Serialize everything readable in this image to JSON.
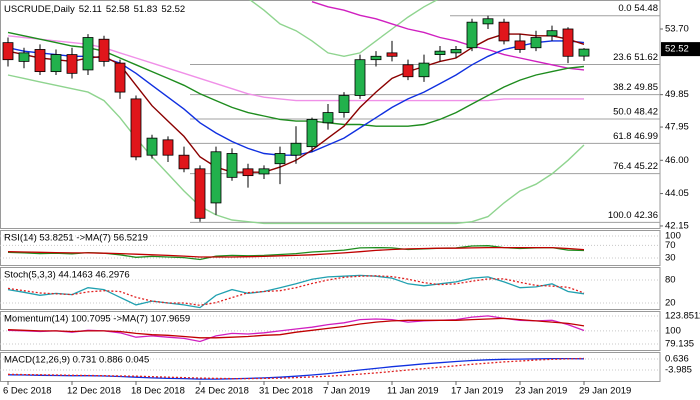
{
  "chart_data": {
    "type": "candlestick",
    "title": "USCRUDE,Daily",
    "categories": [
      "6 Dec 2018",
      null,
      null,
      null,
      "12 Dec 2018",
      null,
      null,
      null,
      "18 Dec 2018",
      null,
      null,
      null,
      "24 Dec 2018",
      null,
      null,
      null,
      "31 Dec 2018",
      null,
      null,
      null,
      "7 Jan 2019",
      null,
      null,
      null,
      "11 Jan 2019",
      null,
      null,
      null,
      "17 Jan 2019",
      null,
      null,
      null,
      "23 Jan 2019",
      null,
      null,
      null,
      "29 Jan 2019"
    ],
    "open": [
      52.9,
      51.8,
      52.5,
      51.2,
      52.2,
      51.3,
      53.1,
      51.7,
      49.6,
      46.3,
      47.2,
      46.3,
      45.5,
      43.5,
      45.0,
      45.5,
      45.2,
      45.8,
      46.3,
      46.8,
      48.2,
      48.8,
      49.8,
      51.9,
      52.3,
      51.6,
      50.9,
      52.2,
      52.3,
      52.6,
      54.0,
      54.1,
      53.0,
      52.6,
      53.3,
      53.7,
      52.11
    ],
    "high": [
      53.2,
      52.6,
      52.8,
      52.5,
      52.6,
      53.4,
      53.3,
      51.9,
      49.8,
      47.5,
      47.4,
      46.8,
      45.7,
      46.8,
      46.7,
      45.8,
      45.7,
      46.8,
      48.0,
      48.5,
      49.3,
      50.0,
      52.2,
      52.4,
      53.0,
      51.9,
      52.2,
      52.7,
      52.7,
      54.3,
      54.48,
      54.3,
      53.4,
      53.6,
      53.9,
      53.8,
      52.58
    ],
    "low": [
      51.5,
      51.4,
      51.0,
      51.0,
      50.8,
      51.0,
      51.5,
      49.6,
      46.0,
      46.1,
      45.9,
      45.3,
      42.4,
      42.8,
      44.8,
      44.4,
      44.9,
      44.6,
      45.8,
      46.5,
      47.8,
      48.5,
      49.6,
      51.5,
      51.8,
      50.7,
      50.6,
      51.8,
      52.0,
      52.4,
      53.7,
      52.8,
      52.3,
      52.4,
      53.0,
      51.7,
      51.83
    ],
    "close": [
      51.9,
      52.3,
      51.2,
      52.2,
      51.1,
      53.2,
      51.8,
      50.0,
      46.2,
      47.3,
      46.3,
      45.5,
      42.6,
      46.5,
      46.4,
      45.1,
      45.5,
      46.4,
      47.0,
      48.4,
      48.8,
      49.8,
      51.9,
      52.1,
      52.1,
      50.9,
      51.7,
      52.4,
      52.5,
      54.1,
      54.3,
      53.0,
      52.5,
      53.2,
      53.6,
      52.1,
      52.52
    ],
    "up_color": "#22b14c",
    "down_color": "#e0161b",
    "ylim": [
      42.03,
      55.4
    ],
    "yticks": [
      {
        "value": 53.7,
        "label": "53.70"
      },
      49.85,
      47.95,
      {
        "value": 46.0,
        "label": "46.00"
      },
      44.05,
      42.15
    ],
    "fib_levels": [
      {
        "value": 54.48,
        "label": "0.0 54.48"
      },
      {
        "value": 51.62,
        "label": "23.6 51.62"
      },
      {
        "value": 49.85,
        "label": "38.2 49.85"
      },
      {
        "value": 48.42,
        "label": "50.0 48.42"
      },
      {
        "value": 46.99,
        "label": "61.8 46.99"
      },
      {
        "value": 45.22,
        "label": "76.4 45.22"
      },
      {
        "value": 42.36,
        "label": "100.0 42.36"
      }
    ],
    "fib_color": "#a0a0a0",
    "lines": [
      {
        "color": "#8fd48f",
        "values": [
          56.0,
          56.0,
          56.0,
          56.0,
          56.0,
          56.0,
          56.0,
          56.0,
          56.0,
          56.0,
          56.0,
          56.0,
          56.0,
          56.0,
          56.0,
          55.5,
          54.8,
          54.0,
          53.6,
          53.0,
          52.3,
          52.1,
          52.3,
          53.0,
          53.7,
          54.4,
          55.0,
          55.5,
          56.0,
          56.0,
          56.0,
          56.0,
          56.0,
          56.0,
          56.0,
          56.0,
          56.0
        ]
      },
      {
        "color": "#8fd48f",
        "values": [
          51.0,
          50.8,
          50.6,
          50.4,
          50.2,
          50.0,
          49.5,
          48.5,
          47.3,
          46.2,
          45.2,
          44.2,
          43.3,
          42.8,
          42.5,
          42.4,
          42.3,
          42.3,
          42.3,
          42.3,
          42.3,
          42.3,
          42.3,
          42.3,
          42.3,
          42.3,
          42.3,
          42.3,
          42.3,
          42.4,
          42.7,
          43.5,
          44.2,
          44.6,
          45.2,
          46.0,
          46.9
        ]
      },
      {
        "color": "#f090e8",
        "values": [
          53.3,
          53.2,
          53.1,
          53.0,
          52.9,
          52.8,
          52.6,
          52.3,
          52.0,
          51.7,
          51.4,
          51.1,
          50.8,
          50.5,
          50.2,
          49.9,
          49.7,
          49.6,
          49.5,
          49.5,
          49.5,
          49.5,
          49.5,
          49.5,
          49.5,
          49.5,
          49.5,
          49.5,
          49.5,
          49.5,
          49.5,
          49.6,
          49.6,
          49.6,
          49.6,
          49.6,
          49.6
        ]
      },
      {
        "color": "#d020c0",
        "values": [
          null,
          null,
          null,
          null,
          null,
          null,
          null,
          null,
          null,
          null,
          null,
          null,
          null,
          null,
          null,
          null,
          null,
          null,
          null,
          55.3,
          55.0,
          54.8,
          54.5,
          54.3,
          54.0,
          53.7,
          53.5,
          53.2,
          53.0,
          52.7,
          52.5,
          52.2,
          52.0,
          51.8,
          51.6,
          51.4,
          51.3
        ]
      },
      {
        "color": "#1e8c1e",
        "values": [
          53.5,
          53.3,
          53.1,
          52.9,
          52.7,
          52.6,
          52.4,
          52.0,
          51.6,
          51.2,
          50.8,
          50.4,
          49.9,
          49.5,
          49.1,
          48.8,
          48.6,
          48.4,
          48.3,
          48.3,
          48.2,
          48.1,
          48.1,
          48.0,
          48.0,
          48.0,
          48.1,
          48.4,
          48.8,
          49.3,
          49.8,
          50.3,
          50.7,
          51.0,
          51.2,
          51.4,
          51.5
        ]
      },
      {
        "color": "#1030e0",
        "values": [
          52.6,
          52.4,
          52.3,
          52.2,
          52.1,
          52.1,
          52.0,
          51.7,
          51.1,
          50.4,
          49.7,
          49.0,
          48.2,
          47.6,
          47.1,
          46.7,
          46.4,
          46.3,
          46.3,
          46.5,
          46.9,
          47.3,
          47.9,
          48.5,
          49.1,
          49.6,
          50.0,
          50.5,
          51.0,
          51.6,
          52.1,
          52.5,
          52.7,
          52.9,
          53.0,
          53.0,
          52.9
        ]
      },
      {
        "color": "#8b0000",
        "values": [
          52.4,
          52.2,
          52.0,
          51.9,
          51.8,
          52.0,
          52.1,
          51.6,
          50.4,
          49.2,
          48.3,
          47.4,
          46.2,
          45.6,
          45.3,
          45.3,
          45.3,
          45.6,
          46.0,
          46.6,
          47.3,
          48.0,
          49.1,
          50.0,
          50.8,
          51.2,
          51.5,
          51.8,
          52.0,
          52.6,
          53.1,
          53.4,
          53.4,
          53.3,
          53.3,
          53.1,
          52.8
        ]
      }
    ],
    "panels": [
      {
        "label": "RSI(14) 53.8251 ->MA(7) 56.5219",
        "ylim": [
          7.6,
          119
        ],
        "yticks": [
          100,
          70,
          30
        ],
        "series": [
          {
            "color": "#1e8c1e",
            "style": "solid",
            "values": [
              48,
              46,
              44,
              45,
              43,
              47,
              45,
              40,
              32,
              35,
              33,
              31,
              25,
              36,
              38,
              37,
              38,
              41,
              44,
              49,
              52,
              55,
              62,
              63,
              62,
              57,
              59,
              61,
              62,
              68,
              69,
              63,
              60,
              62,
              63,
              55,
              53.8251
            ]
          },
          {
            "color": "#c00000",
            "style": "solid",
            "values": [
              50,
              49,
              48,
              47,
              46,
              46,
              45,
              44,
              42,
              40,
              38,
              36,
              33,
              33,
              33,
              34,
              35,
              37,
              38,
              40,
              43,
              46,
              50,
              54,
              57,
              59,
              60,
              61,
              61,
              62,
              63,
              63,
              63,
              63,
              63,
              60,
              56.5219
            ]
          }
        ]
      },
      {
        "label": "Stoch(5,3,3) 44.1463 46.2976",
        "ylim": [
          4.4,
          113.9
        ],
        "yticks": [
          80,
          20
        ],
        "series": [
          {
            "color": "#20a0b0",
            "style": "solid",
            "values": [
              55,
              48,
              40,
              45,
              42,
              60,
              55,
              35,
              15,
              25,
              20,
              15,
              8,
              40,
              55,
              45,
              50,
              60,
              70,
              82,
              88,
              90,
              92,
              90,
              85,
              70,
              65,
              70,
              75,
              85,
              88,
              75,
              60,
              62,
              70,
              50,
              44.1463
            ]
          },
          {
            "color": "#e02020",
            "style": "dotted",
            "values": [
              58,
              52,
              46,
              44,
              42,
              49,
              52,
              50,
              35,
              25,
              20,
              20,
              14,
              21,
              34,
              47,
              50,
              52,
              60,
              71,
              80,
              87,
              90,
              91,
              89,
              82,
              73,
              68,
              70,
              77,
              83,
              83,
              74,
              66,
              64,
              61,
              46.2976
            ]
          }
        ]
      },
      {
        "label": "Momentum(14) 100.7095 ->MA(7) 107.9659",
        "ylim": [
          69.5,
          131.8
        ],
        "yticks": [
          123.8511,
          100,
          79.135
        ],
        "series": [
          {
            "color": "#d020c0",
            "style": "solid",
            "values": [
              101,
              100,
              99,
              100,
              98,
              101,
              100,
              97,
              90,
              92,
              90,
              88,
              83,
              92,
              96,
              95,
              97,
              100,
              103,
              106,
              110,
              113,
              118,
              119,
              118,
              114,
              116,
              117,
              118,
              122,
              124,
              120,
              117,
              116,
              117,
              110,
              100.7095
            ]
          },
          {
            "color": "#c00000",
            "style": "solid",
            "values": [
              102,
              101,
              100,
              100,
              99,
              100,
              100,
              99,
              96,
              94,
              93,
              91,
              89,
              89,
              90,
              91,
              93,
              94,
              98,
              101,
              104,
              107,
              111,
              114,
              116,
              117,
              117,
              117,
              117,
              118,
              119,
              120,
              118,
              116,
              114,
              112,
              107.9659
            ]
          }
        ]
      },
      {
        "label": "MACD(12,26,9) 0.731 0.886 0.045",
        "ylim": [
          -8.61,
          3.58
        ],
        "yticks": [
          0.636,
          -3.985
        ],
        "series": [
          {
            "color": "#1030e0",
            "style": "solid",
            "values": [
              -6.0,
              -6.1,
              -6.2,
              -6.3,
              -6.4,
              -6.4,
              -6.5,
              -6.7,
              -7.0,
              -7.3,
              -7.5,
              -7.6,
              -7.8,
              -7.8,
              -7.7,
              -7.5,
              -7.3,
              -7.0,
              -6.6,
              -6.1,
              -5.5,
              -4.8,
              -4.0,
              -3.3,
              -2.6,
              -2.0,
              -1.4,
              -0.9,
              -0.4,
              0.0,
              0.3,
              0.5,
              0.6,
              0.7,
              0.8,
              0.8,
              0.731
            ]
          },
          {
            "color": "#e02020",
            "style": "dotted",
            "values": [
              -5.8,
              -5.9,
              -6.0,
              -6.1,
              -6.2,
              -6.3,
              -6.4,
              -6.5,
              -6.6,
              -6.8,
              -7.0,
              -7.2,
              -7.4,
              -7.5,
              -7.6,
              -7.6,
              -7.5,
              -7.4,
              -7.2,
              -6.9,
              -6.6,
              -6.2,
              -5.7,
              -5.2,
              -4.6,
              -4.0,
              -3.4,
              -2.8,
              -2.2,
              -1.6,
              -1.1,
              -0.6,
              -0.2,
              0.2,
              0.5,
              0.7,
              0.886
            ]
          }
        ]
      }
    ]
  }
}
